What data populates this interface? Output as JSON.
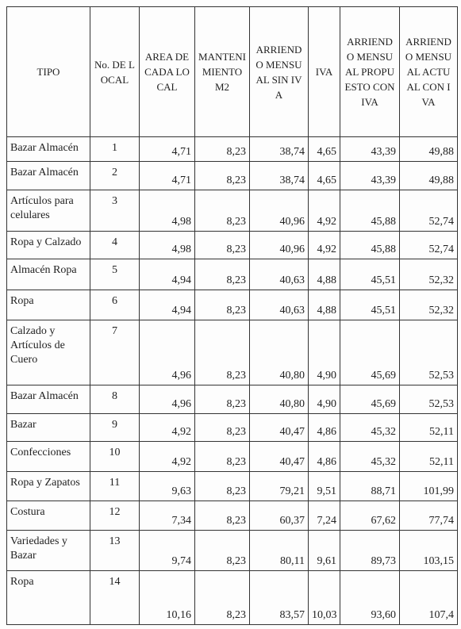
{
  "table": {
    "headers": [
      "TIPO",
      "No. DE LOCAL",
      "AREA DE CADA LOCAL",
      "MANTENIMIENTO M2",
      "ARRIENDO MENSUAL SIN IVA",
      "IVA",
      "ARRIENDO MENSUAL PROPUESTO CON IVA",
      "ARRIENDO MENSUAL ACTUAL CON IVA"
    ],
    "rows": [
      [
        "Bazar Almacén",
        "1",
        "4,71",
        "8,23",
        "38,74",
        "4,65",
        "43,39",
        "49,88"
      ],
      [
        "Bazar Almacén",
        "2",
        "4,71",
        "8,23",
        "38,74",
        "4,65",
        "43,39",
        "49,88"
      ],
      [
        "Artículos para celulares",
        "3",
        "4,98",
        "8,23",
        "40,96",
        "4,92",
        "45,88",
        "52,74"
      ],
      [
        "Ropa y Calzado",
        "4",
        "4,98",
        "8,23",
        "40,96",
        "4,92",
        "45,88",
        "52,74"
      ],
      [
        "Almacén Ropa",
        "5",
        "4,94",
        "8,23",
        "40,63",
        "4,88",
        "45,51",
        "52,32"
      ],
      [
        "Ropa",
        "6",
        "4,94",
        "8,23",
        "40,63",
        "4,88",
        "45,51",
        "52,32"
      ],
      [
        "Calzado y Artículos de Cuero",
        "7",
        "4,96",
        "8,23",
        "40,80",
        "4,90",
        "45,69",
        "52,53"
      ],
      [
        "Bazar Almacén",
        "8",
        "4,96",
        "8,23",
        "40,80",
        "4,90",
        "45,69",
        "52,53"
      ],
      [
        "Bazar",
        "9",
        "4,92",
        "8,23",
        "40,47",
        "4,86",
        "45,32",
        "52,11"
      ],
      [
        "Confecciones",
        "10",
        "4,92",
        "8,23",
        "40,47",
        "4,86",
        "45,32",
        "52,11"
      ],
      [
        "Ropa y Zapatos",
        "11",
        "9,63",
        "8,23",
        "79,21",
        "9,51",
        "88,71",
        "101,99"
      ],
      [
        "Costura",
        "12",
        "7,34",
        "8,23",
        "60,37",
        "7,24",
        "67,62",
        "77,74"
      ],
      [
        "Variedades y Bazar",
        "13",
        "9,74",
        "8,23",
        "80,11",
        "9,61",
        "89,73",
        "103,15"
      ],
      [
        "Ropa",
        "14",
        "10,16",
        "8,23",
        "83,57",
        "10,03",
        "93,60",
        "107,4"
      ]
    ]
  }
}
